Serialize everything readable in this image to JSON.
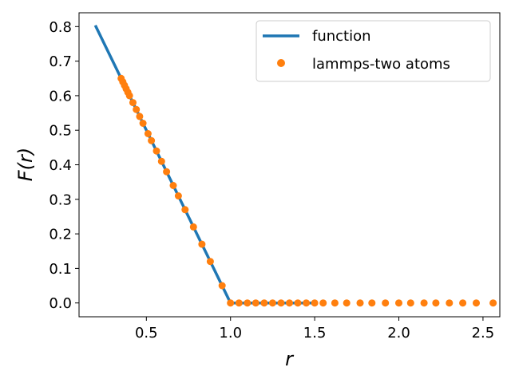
{
  "chart_data": {
    "type": "line",
    "xlabel": "r",
    "ylabel": "F(r)",
    "xlim": [
      0.1,
      2.6
    ],
    "ylim": [
      -0.04,
      0.84
    ],
    "xticks": [
      0.5,
      1.0,
      1.5,
      2.0,
      2.5
    ],
    "xtick_labels": [
      "0.5",
      "1.0",
      "1.5",
      "2.0",
      "2.5"
    ],
    "yticks": [
      0.0,
      0.1,
      0.2,
      0.3,
      0.4,
      0.5,
      0.6,
      0.7,
      0.8
    ],
    "ytick_labels": [
      "0.0",
      "0.1",
      "0.2",
      "0.3",
      "0.4",
      "0.5",
      "0.6",
      "0.7",
      "0.8"
    ],
    "grid": false,
    "legend_position": "top-right",
    "series": [
      {
        "name": "function",
        "style": "line",
        "color": "#1f77b4",
        "x": [
          0.2,
          1.0,
          1.5
        ],
        "y": [
          0.8,
          0.0,
          0.0
        ]
      },
      {
        "name": "lammps-two atoms",
        "style": "scatter",
        "color": "#ff7f0e",
        "x": [
          0.35,
          0.36,
          0.37,
          0.38,
          0.39,
          0.4,
          0.42,
          0.44,
          0.46,
          0.48,
          0.51,
          0.53,
          0.56,
          0.59,
          0.62,
          0.66,
          0.69,
          0.73,
          0.78,
          0.83,
          0.88,
          0.95,
          1.0,
          1.05,
          1.1,
          1.15,
          1.2,
          1.25,
          1.3,
          1.35,
          1.4,
          1.45,
          1.5,
          1.55,
          1.62,
          1.69,
          1.77,
          1.84,
          1.92,
          2.0,
          2.07,
          2.15,
          2.22,
          2.3,
          2.38,
          2.46,
          2.56
        ],
        "y": [
          0.65,
          0.64,
          0.63,
          0.62,
          0.61,
          0.6,
          0.58,
          0.56,
          0.54,
          0.52,
          0.49,
          0.47,
          0.44,
          0.41,
          0.38,
          0.34,
          0.31,
          0.27,
          0.22,
          0.17,
          0.12,
          0.05,
          0.0,
          0.0,
          0.0,
          0.0,
          0.0,
          0.0,
          0.0,
          0.0,
          0.0,
          0.0,
          0.0,
          0.0,
          0.0,
          0.0,
          0.0,
          0.0,
          0.0,
          0.0,
          0.0,
          0.0,
          0.0,
          0.0,
          0.0,
          0.0,
          0.0
        ]
      }
    ]
  }
}
